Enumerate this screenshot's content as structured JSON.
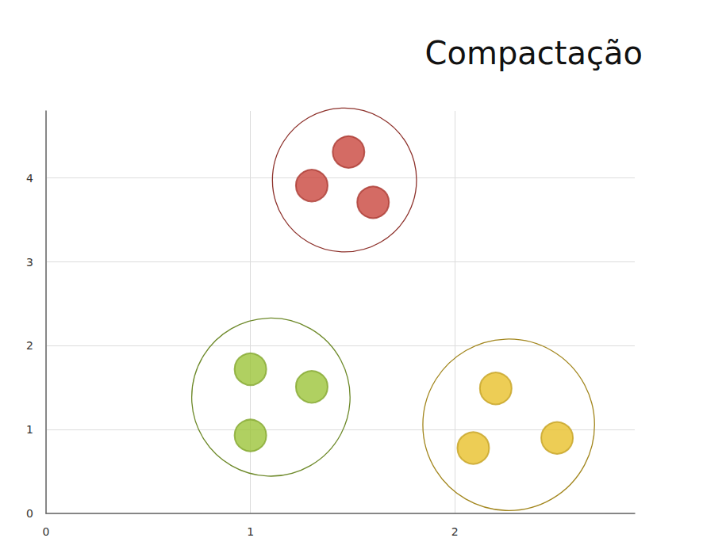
{
  "chart_data": {
    "type": "scatter",
    "title": "Compactação",
    "series": [
      {
        "color": "#c9463d",
        "x": [
          1.48,
          1.3,
          1.6
        ],
        "values": [
          4.31,
          3.91,
          3.71
        ]
      },
      {
        "color": "#9cc43a",
        "x": [
          1.0,
          1.3,
          1.0
        ],
        "values": [
          1.72,
          1.51,
          0.93
        ]
      },
      {
        "color": "#e8c02a",
        "x": [
          2.2,
          2.09,
          2.5
        ],
        "values": [
          1.49,
          0.78,
          0.9
        ]
      }
    ],
    "xlim": [
      0,
      2.88
    ],
    "xticks": [
      0,
      1,
      2
    ],
    "ylim": [
      0,
      4.8
    ],
    "yticks": [
      0,
      1,
      2,
      3,
      4
    ],
    "grid": true
  }
}
